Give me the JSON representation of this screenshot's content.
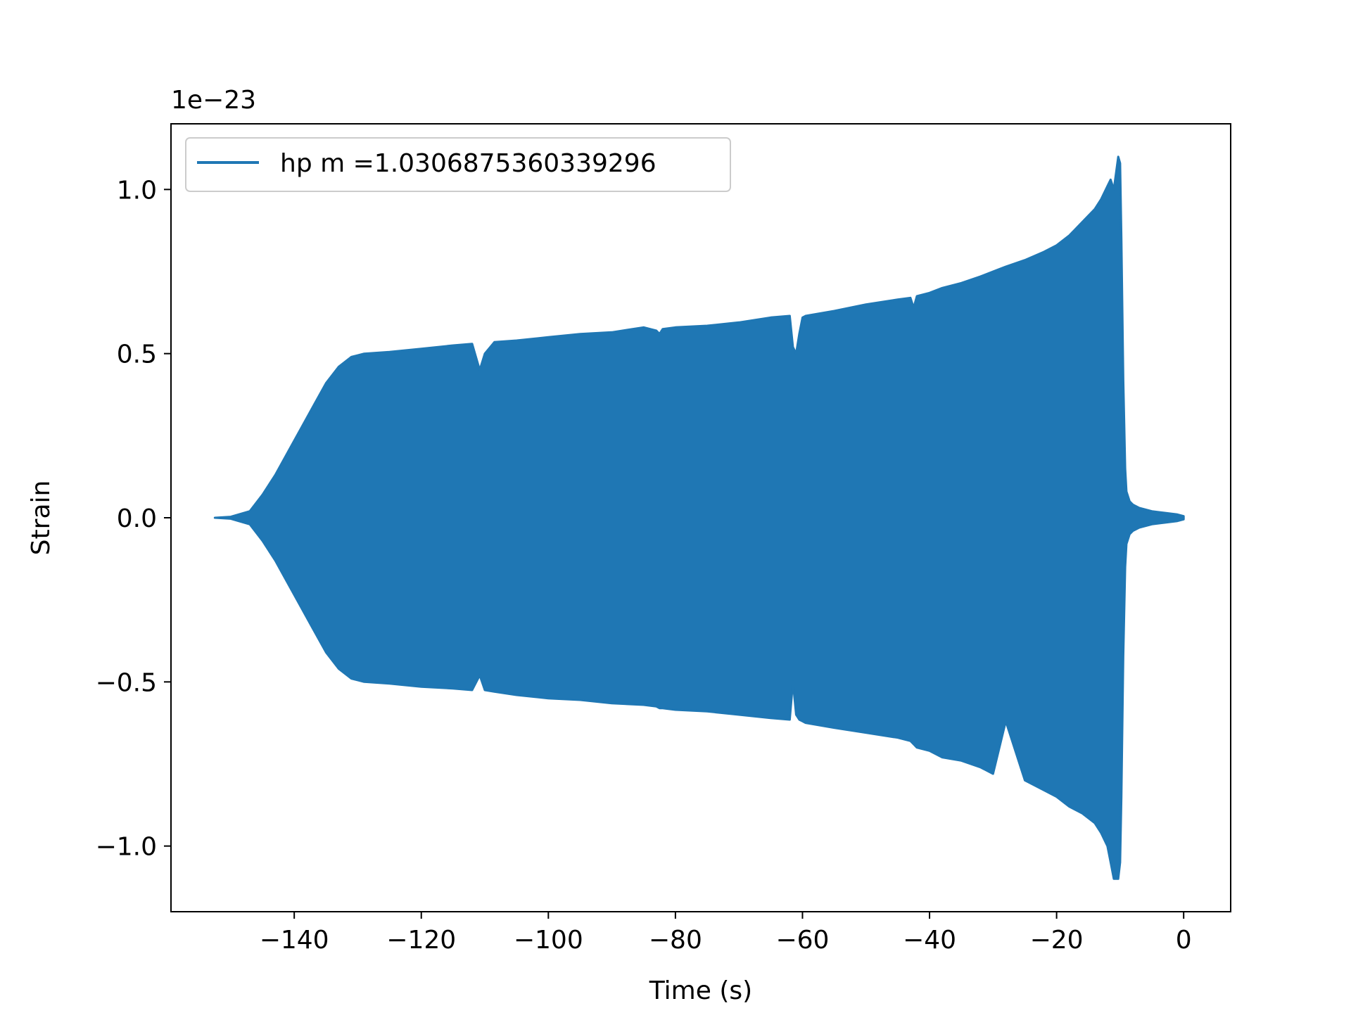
{
  "chart_data": {
    "type": "area",
    "title": "",
    "xlabel": "Time (s)",
    "ylabel": "Strain",
    "offset_text": "1e−23",
    "xlim": [
      -159.4,
      7.4
    ],
    "ylim": [
      -1.2,
      1.2
    ],
    "x_ticks": [
      -140,
      -120,
      -100,
      -80,
      -60,
      -40,
      -20,
      0
    ],
    "x_tick_labels": [
      "−140",
      "−120",
      "−100",
      "−80",
      "−60",
      "−40",
      "−20",
      "0"
    ],
    "y_ticks": [
      1.0,
      0.5,
      0.0,
      -0.5,
      -1.0
    ],
    "y_tick_labels": [
      "1.0",
      "0.5",
      "0.0",
      "−0.5",
      "−1.0"
    ],
    "grid": false,
    "legend": {
      "position": "upper-left",
      "entries": [
        "hp m =1.0306875360339296"
      ]
    },
    "series": [
      {
        "name": "hp m =1.0306875360339296",
        "color": "#1f77b4",
        "x": [
          -152.5,
          -150,
          -147,
          -145,
          -143,
          -141,
          -139,
          -137,
          -135,
          -133,
          -131,
          -129,
          -125,
          -120,
          -115,
          -112,
          -110.8,
          -110,
          -108.5,
          -105,
          -100,
          -95,
          -90,
          -85,
          -83,
          -82.5,
          -82,
          -80,
          -75,
          -70,
          -65,
          -62,
          -61.5,
          -61,
          -60.5,
          -60,
          -59.5,
          -55,
          -50,
          -45,
          -43,
          -42.5,
          -42,
          -40,
          -38,
          -35,
          -32,
          -30,
          -28,
          -25,
          -22,
          -20,
          -18,
          -16,
          -14,
          -13,
          -12,
          -11.5,
          -11,
          -10.3,
          -10,
          -9.8,
          -9.5,
          -9.2,
          -9,
          -8.5,
          -8,
          -7,
          -6,
          -5,
          -3,
          -1,
          0
        ],
        "upper": [
          0.0,
          0.003,
          0.02,
          0.07,
          0.13,
          0.2,
          0.27,
          0.34,
          0.41,
          0.46,
          0.49,
          0.5,
          0.505,
          0.515,
          0.525,
          0.53,
          0.45,
          0.5,
          0.535,
          0.54,
          0.55,
          0.56,
          0.565,
          0.58,
          0.57,
          0.56,
          0.575,
          0.58,
          0.585,
          0.595,
          0.61,
          0.615,
          0.52,
          0.5,
          0.56,
          0.61,
          0.615,
          0.63,
          0.65,
          0.665,
          0.67,
          0.64,
          0.675,
          0.685,
          0.7,
          0.715,
          0.735,
          0.75,
          0.765,
          0.785,
          0.81,
          0.83,
          0.86,
          0.9,
          0.94,
          0.97,
          1.01,
          1.03,
          1.0,
          1.1,
          1.08,
          0.85,
          0.42,
          0.15,
          0.08,
          0.05,
          0.04,
          0.03,
          0.025,
          0.02,
          0.015,
          0.01,
          0.005
        ],
        "lower": [
          0.0,
          -0.003,
          -0.02,
          -0.07,
          -0.13,
          -0.2,
          -0.27,
          -0.34,
          -0.41,
          -0.46,
          -0.49,
          -0.5,
          -0.505,
          -0.515,
          -0.52,
          -0.525,
          -0.48,
          -0.525,
          -0.53,
          -0.54,
          -0.55,
          -0.555,
          -0.565,
          -0.57,
          -0.575,
          -0.58,
          -0.58,
          -0.585,
          -0.59,
          -0.6,
          -0.61,
          -0.615,
          -0.5,
          -0.6,
          -0.615,
          -0.62,
          -0.625,
          -0.64,
          -0.655,
          -0.67,
          -0.68,
          -0.69,
          -0.7,
          -0.71,
          -0.73,
          -0.74,
          -0.76,
          -0.78,
          -0.62,
          -0.8,
          -0.83,
          -0.85,
          -0.88,
          -0.9,
          -0.93,
          -0.96,
          -1.0,
          -1.05,
          -1.1,
          -1.1,
          -1.05,
          -0.85,
          -0.42,
          -0.15,
          -0.08,
          -0.05,
          -0.04,
          -0.03,
          -0.025,
          -0.02,
          -0.015,
          -0.01,
          -0.005
        ]
      }
    ]
  }
}
